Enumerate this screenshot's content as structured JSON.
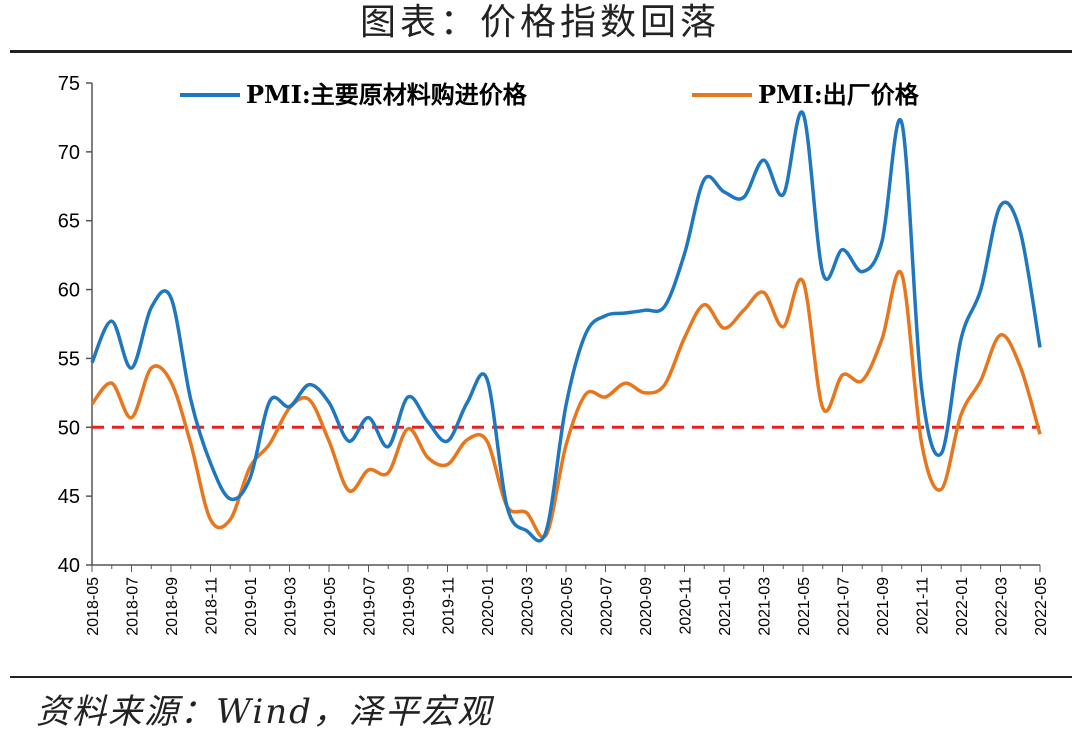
{
  "header": {
    "title": "图表：价格指数回落"
  },
  "footer": {
    "source": "资料来源：Wind，泽平宏观"
  },
  "chart_data": {
    "type": "line",
    "legend_position": "top",
    "grid": false,
    "ylim": [
      40,
      75
    ],
    "yticks": [
      40,
      45,
      50,
      55,
      60,
      65,
      70,
      75
    ],
    "reference_line": {
      "y": 50,
      "color": "#e82020",
      "style": "dashed"
    },
    "categories": [
      "2018-05",
      "2018-06",
      "2018-07",
      "2018-08",
      "2018-09",
      "2018-10",
      "2018-11",
      "2018-12",
      "2019-01",
      "2019-02",
      "2019-03",
      "2019-04",
      "2019-05",
      "2019-06",
      "2019-07",
      "2019-08",
      "2019-09",
      "2019-10",
      "2019-11",
      "2019-12",
      "2020-01",
      "2020-02",
      "2020-03",
      "2020-04",
      "2020-05",
      "2020-06",
      "2020-07",
      "2020-08",
      "2020-09",
      "2020-10",
      "2020-11",
      "2020-12",
      "2021-01",
      "2021-02",
      "2021-03",
      "2021-04",
      "2021-05",
      "2021-06",
      "2021-07",
      "2021-08",
      "2021-09",
      "2021-10",
      "2021-11",
      "2021-12",
      "2022-01",
      "2022-02",
      "2022-03",
      "2022-04",
      "2022-05"
    ],
    "xtick_labels": [
      "2018-05",
      "2018-07",
      "2018-09",
      "2018-11",
      "2019-01",
      "2019-03",
      "2019-05",
      "2019-07",
      "2019-09",
      "2019-11",
      "2020-01",
      "2020-03",
      "2020-05",
      "2020-07",
      "2020-09",
      "2020-11",
      "2021-01",
      "2021-03",
      "2021-05",
      "2021-07",
      "2021-09",
      "2021-11",
      "2022-01",
      "2022-03",
      "2022-05"
    ],
    "series": [
      {
        "name": "PMI:主要原材料购进价格",
        "color": "#1f77c0",
        "values": [
          54.7,
          57.7,
          54.3,
          58.7,
          59.4,
          52.0,
          47.4,
          44.8,
          46.3,
          51.9,
          51.5,
          53.1,
          51.8,
          49.0,
          50.7,
          48.6,
          52.2,
          50.4,
          49.0,
          51.8,
          53.5,
          44.3,
          42.5,
          42.5,
          51.6,
          56.8,
          58.1,
          58.3,
          58.5,
          58.8,
          62.6,
          68.0,
          67.1,
          66.7,
          69.4,
          66.9,
          72.8,
          61.2,
          62.9,
          61.3,
          63.5,
          72.1,
          52.9,
          48.1,
          56.4,
          60.0,
          66.1,
          64.2,
          55.8
        ]
      },
      {
        "name": "PMI:出厂价格",
        "color": "#e8761c",
        "values": [
          51.7,
          53.2,
          50.7,
          54.3,
          53.3,
          48.8,
          43.3,
          43.3,
          47.1,
          48.8,
          51.4,
          52.0,
          49.0,
          45.4,
          46.9,
          46.7,
          49.9,
          47.8,
          47.3,
          49.1,
          49.0,
          44.3,
          43.8,
          42.2,
          48.7,
          52.4,
          52.2,
          53.2,
          52.5,
          53.1,
          56.5,
          58.9,
          57.2,
          58.5,
          59.8,
          57.3,
          60.6,
          51.4,
          53.8,
          53.4,
          56.4,
          61.1,
          48.9,
          45.5,
          50.9,
          53.4,
          56.7,
          54.4,
          49.5
        ]
      }
    ]
  }
}
